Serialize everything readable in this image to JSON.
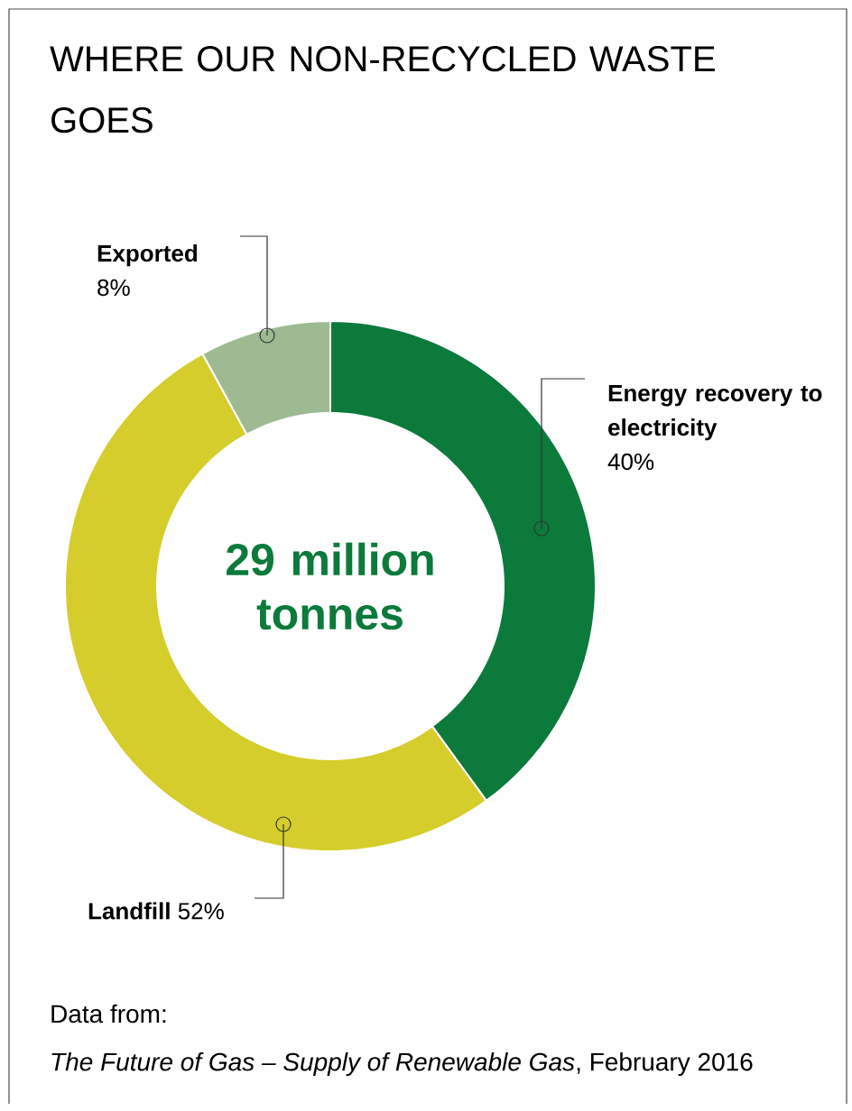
{
  "chart_data": {
    "type": "donut",
    "title": "WHERE OUR NON-RECYCLED WASTE GOES",
    "categories": [
      "Energy recovery to electricity",
      "Landfill",
      "Exported"
    ],
    "values": [
      40,
      52,
      8
    ],
    "colors": [
      "#0b7a3b",
      "#d5cd2b",
      "#9dba92"
    ],
    "value_labels": [
      "40%",
      "52%",
      "8%"
    ],
    "annotations": [
      "29 million tonnes",
      "Data from:",
      "*The Future of Gas – Supply of Renewable Gas*, February 2016"
    ]
  }
}
